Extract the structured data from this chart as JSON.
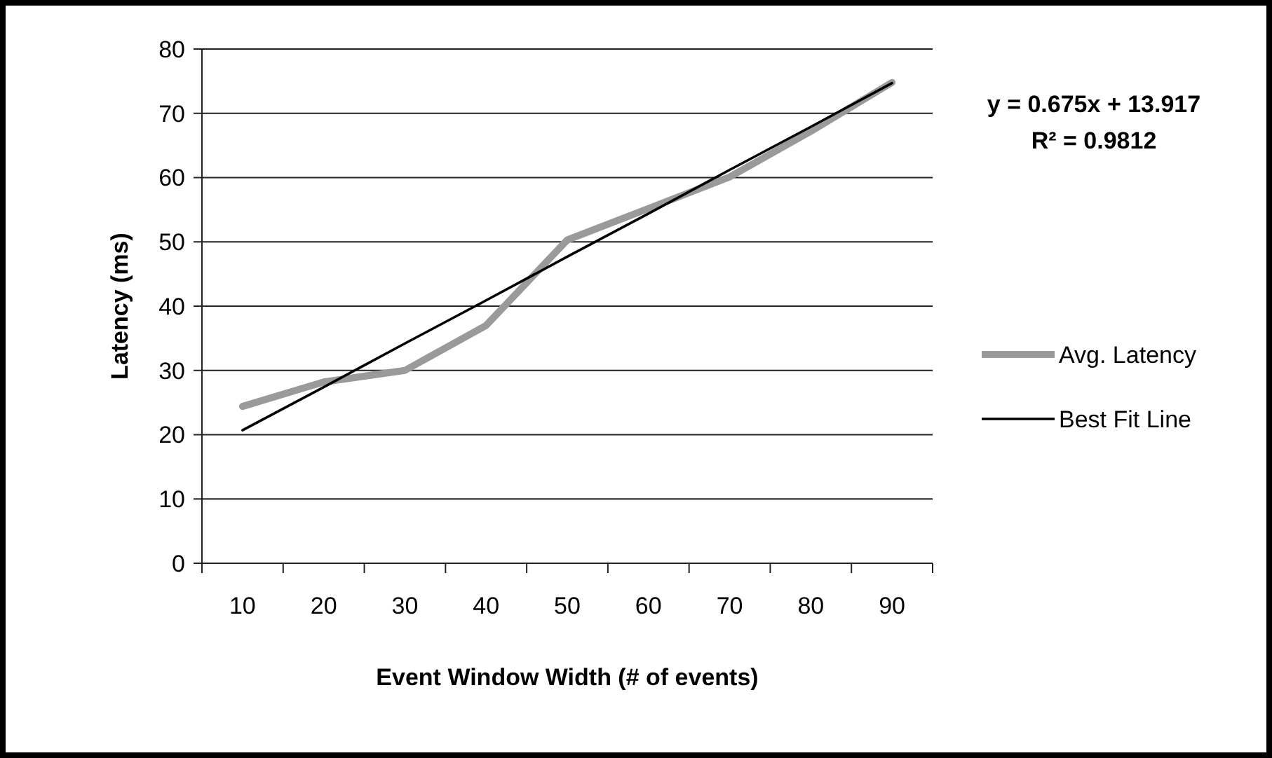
{
  "chart_data": {
    "type": "line",
    "xlabel": "Event Window Width (# of events)",
    "ylabel": "Latency (ms)",
    "categories": [
      "10",
      "20",
      "30",
      "40",
      "50",
      "60",
      "70",
      "80",
      "90"
    ],
    "series": [
      {
        "name": "Avg. Latency",
        "color": "#9a9a9a",
        "values": [
          24.4,
          28.2,
          30,
          37,
          50.3,
          55.2,
          60.1,
          67.2,
          74.8
        ]
      },
      {
        "name": "Best Fit Line",
        "color": "#000000",
        "values": [
          20.7,
          27.4,
          34.2,
          40.9,
          47.7,
          54.4,
          61.2,
          67.9,
          74.7
        ]
      }
    ],
    "ylim": [
      0,
      80
    ],
    "yticks": [
      0,
      10,
      20,
      30,
      40,
      50,
      60,
      70,
      80
    ],
    "grid": "y",
    "legend": "right",
    "marker": "none",
    "annotations": [
      "y = 0.675x + 13.917",
      "R² = 0.9812"
    ]
  }
}
